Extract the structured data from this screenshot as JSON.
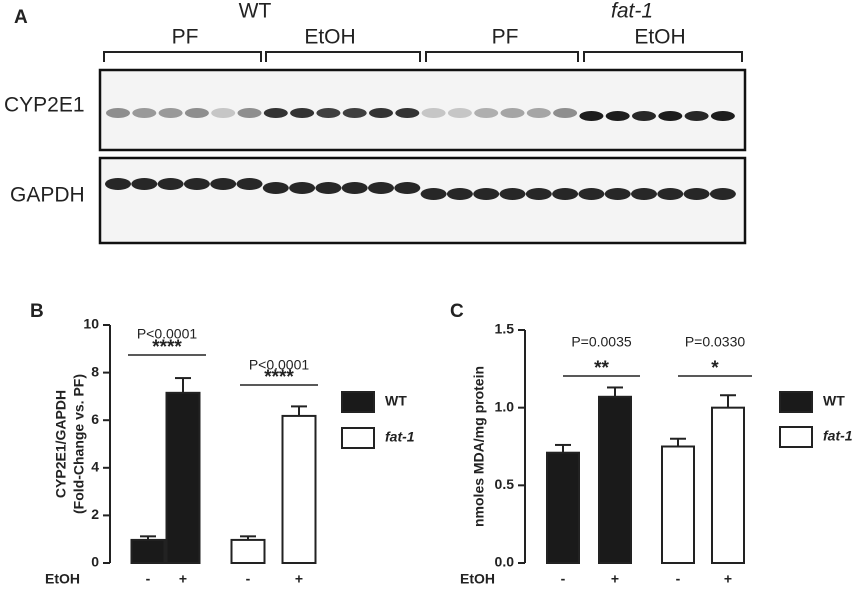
{
  "blot": {
    "panel": "A",
    "groups": [
      "WT",
      "fat-1"
    ],
    "subgroups": [
      "PF",
      "EtOH",
      "PF",
      "EtOH"
    ],
    "rows": [
      "CYP2E1",
      "GAPDH"
    ]
  },
  "chart_data": [
    {
      "type": "bar",
      "panel": "B",
      "ylabel": [
        "CYP2E1/GAPDH",
        "(Fold-Change vs. PF)"
      ],
      "xlabel": "EtOH",
      "categories": [
        "-",
        "+",
        "-",
        "+"
      ],
      "series": [
        {
          "name": "WT",
          "color": "#1a1a1a",
          "values": [
            0.97,
            7.15,
            null,
            null
          ],
          "errors": [
            0.15,
            0.62,
            null,
            null
          ]
        },
        {
          "name": "fat-1",
          "color": "#ffffff",
          "values": [
            null,
            null,
            0.97,
            6.18
          ],
          "errors": [
            null,
            null,
            0.15,
            0.4
          ]
        }
      ],
      "comparisons": [
        {
          "p": "P<0.0001",
          "stars": "****"
        },
        {
          "p": "P<0.0001",
          "stars": "****"
        }
      ],
      "ylim": [
        0,
        10
      ],
      "yticks": [
        0,
        2,
        4,
        6,
        8,
        10
      ],
      "legend": "right"
    },
    {
      "type": "bar",
      "panel": "C",
      "ylabel": [
        "nmoles MDA/mg protein"
      ],
      "xlabel": "EtOH",
      "categories": [
        "-",
        "+",
        "-",
        "+"
      ],
      "series": [
        {
          "name": "WT",
          "color": "#1a1a1a",
          "values": [
            0.71,
            1.07,
            null,
            null
          ],
          "errors": [
            0.05,
            0.06,
            null,
            null
          ]
        },
        {
          "name": "fat-1",
          "color": "#ffffff",
          "values": [
            null,
            null,
            0.75,
            1.0
          ],
          "errors": [
            null,
            null,
            0.05,
            0.08
          ]
        }
      ],
      "comparisons": [
        {
          "p": "P=0.0035",
          "stars": "**"
        },
        {
          "p": "P=0.0330",
          "stars": "*"
        }
      ],
      "ylim": [
        0,
        1.5
      ],
      "yticks": [
        {
          "value": 0,
          "label": "0.0"
        },
        0.5,
        {
          "value": 1,
          "label": "1.0"
        },
        1.5
      ],
      "legend": "right"
    }
  ]
}
